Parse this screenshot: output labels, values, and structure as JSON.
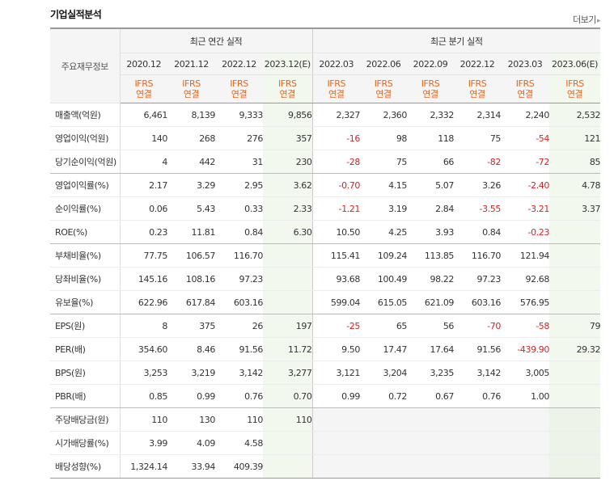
{
  "title": "기업실적분석",
  "more_label": "더보기",
  "header": {
    "item_label": "주요재무정보",
    "annual_label": "최근 연간 실적",
    "quarter_label": "최근 분기 실적",
    "periods": [
      "2020.12",
      "2021.12",
      "2022.12",
      "2023.12(E)",
      "2022.03",
      "2022.06",
      "2022.09",
      "2022.12",
      "2023.03",
      "2023.06(E)"
    ],
    "basis_top": "IFRS",
    "basis_bottom": "연결"
  },
  "rows": [
    {
      "label": "매출액(억원)",
      "values": [
        "6,461",
        "8,139",
        "9,333",
        "9,856",
        "2,327",
        "2,360",
        "2,332",
        "2,314",
        "2,240",
        "2,532"
      ]
    },
    {
      "label": "영업이익(억원)",
      "values": [
        "140",
        "268",
        "276",
        "357",
        "-16",
        "98",
        "118",
        "75",
        "-54",
        "121"
      ]
    },
    {
      "label": "당기순이익(억원)",
      "values": [
        "4",
        "442",
        "31",
        "230",
        "-28",
        "75",
        "66",
        "-82",
        "-72",
        "85"
      ]
    },
    {
      "label": "영업이익률(%)",
      "values": [
        "2.17",
        "3.29",
        "2.95",
        "3.62",
        "-0.70",
        "4.15",
        "5.07",
        "3.26",
        "-2.40",
        "4.78"
      ]
    },
    {
      "label": "순이익률(%)",
      "values": [
        "0.06",
        "5.43",
        "0.33",
        "2.33",
        "-1.21",
        "3.19",
        "2.84",
        "-3.55",
        "-3.21",
        "3.37"
      ]
    },
    {
      "label": "ROE(%)",
      "values": [
        "0.23",
        "11.81",
        "0.84",
        "6.30",
        "10.50",
        "4.25",
        "3.93",
        "0.84",
        "-0.23",
        ""
      ]
    },
    {
      "label": "부채비율(%)",
      "values": [
        "77.75",
        "106.57",
        "116.70",
        "",
        "115.41",
        "109.24",
        "113.85",
        "116.70",
        "121.94",
        ""
      ]
    },
    {
      "label": "당좌비율(%)",
      "values": [
        "145.16",
        "108.16",
        "97.23",
        "",
        "93.68",
        "100.49",
        "98.22",
        "97.23",
        "92.68",
        ""
      ]
    },
    {
      "label": "유보율(%)",
      "values": [
        "622.96",
        "617.84",
        "603.16",
        "",
        "599.04",
        "615.05",
        "621.09",
        "603.16",
        "576.95",
        ""
      ]
    },
    {
      "label": "EPS(원)",
      "values": [
        "8",
        "375",
        "26",
        "197",
        "-25",
        "65",
        "56",
        "-70",
        "-58",
        "79"
      ]
    },
    {
      "label": "PER(배)",
      "values": [
        "354.60",
        "8.46",
        "91.56",
        "11.72",
        "9.50",
        "17.47",
        "17.64",
        "91.56",
        "-439.90",
        "29.32"
      ]
    },
    {
      "label": "BPS(원)",
      "values": [
        "3,253",
        "3,219",
        "3,142",
        "3,277",
        "3,121",
        "3,204",
        "3,235",
        "3,142",
        "3,005",
        ""
      ]
    },
    {
      "label": "PBR(배)",
      "values": [
        "0.85",
        "0.99",
        "0.76",
        "0.70",
        "0.99",
        "0.72",
        "0.67",
        "0.76",
        "1.00",
        ""
      ]
    },
    {
      "label": "주당배당금(원)",
      "values": [
        "110",
        "130",
        "110",
        "110",
        "",
        "",
        "",
        "",
        "",
        ""
      ]
    },
    {
      "label": "시가배당률(%)",
      "values": [
        "3.99",
        "4.09",
        "4.58",
        "",
        "",
        "",
        "",
        "",
        "",
        ""
      ]
    },
    {
      "label": "배당성향(%)",
      "values": [
        "1,324.14",
        "33.94",
        "409.39",
        "",
        "",
        "",
        "",
        "",
        "",
        ""
      ]
    }
  ],
  "colors": {
    "ifrs": "#e8641b",
    "negative": "#e02020",
    "estimate_bg": "#f2f8ee",
    "header_bg": "#f5f5f5"
  }
}
